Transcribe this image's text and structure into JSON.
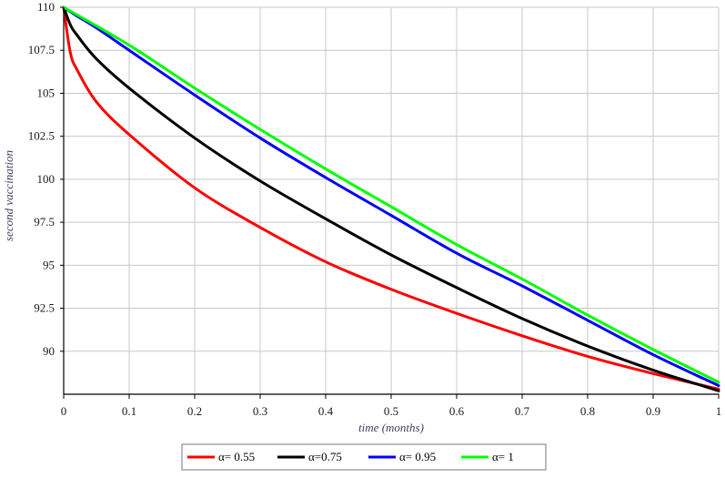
{
  "chart_data": {
    "type": "line",
    "title": "",
    "xlabel": "time (months)",
    "ylabel": "second vaccination",
    "xlim": [
      0,
      1
    ],
    "ylim": [
      87.5,
      110
    ],
    "x_ticks": [
      0,
      0.1,
      0.2,
      0.3,
      0.4,
      0.5,
      0.6,
      0.7,
      0.8,
      0.9,
      1
    ],
    "x_tick_labels": [
      "0",
      "0.1",
      "0.2",
      "0.3",
      "0.4",
      "0.5",
      "0.6",
      "0.7",
      "0.8",
      "0.9",
      "1"
    ],
    "y_ticks": [
      90,
      92.5,
      95,
      97.5,
      100,
      102.5,
      105,
      107.5,
      110
    ],
    "y_tick_labels": [
      "90",
      "92.5",
      "95",
      "97.5",
      "100",
      "102.5",
      "105",
      "107.5",
      "110"
    ],
    "grid": true,
    "legend_position": "bottom",
    "series": [
      {
        "name": "α= 0.55",
        "color": "#ff0000",
        "x": [
          0,
          0.01,
          0.02,
          0.05,
          0.1,
          0.2,
          0.3,
          0.4,
          0.5,
          0.6,
          0.7,
          0.8,
          0.9,
          1
        ],
        "y": [
          110,
          107.4,
          106.4,
          104.5,
          102.6,
          99.5,
          97.2,
          95.2,
          93.6,
          92.2,
          90.9,
          89.7,
          88.7,
          87.8
        ]
      },
      {
        "name": "α=0.75",
        "color": "#000000",
        "x": [
          0,
          0.01,
          0.02,
          0.05,
          0.1,
          0.2,
          0.3,
          0.4,
          0.5,
          0.6,
          0.7,
          0.8,
          0.9,
          1
        ],
        "y": [
          110,
          109.0,
          108.4,
          107.0,
          105.3,
          102.4,
          99.9,
          97.7,
          95.6,
          93.7,
          91.9,
          90.3,
          88.9,
          87.7
        ]
      },
      {
        "name": "α= 0.95",
        "color": "#0000ff",
        "x": [
          0,
          0.01,
          0.02,
          0.05,
          0.1,
          0.2,
          0.3,
          0.4,
          0.5,
          0.6,
          0.7,
          0.8,
          0.9,
          1
        ],
        "y": [
          110,
          109.75,
          109.5,
          108.8,
          107.5,
          104.9,
          102.4,
          100.1,
          97.9,
          95.7,
          93.8,
          91.8,
          89.8,
          88.0
        ]
      },
      {
        "name": "α= 1",
        "color": "#00ff00",
        "x": [
          0,
          0.1,
          0.2,
          0.3,
          0.4,
          0.5,
          0.6,
          0.7,
          0.8,
          0.9,
          1
        ],
        "y": [
          110,
          107.8,
          105.3,
          102.9,
          100.6,
          98.4,
          96.2,
          94.2,
          92.1,
          90.1,
          88.2
        ]
      }
    ]
  }
}
